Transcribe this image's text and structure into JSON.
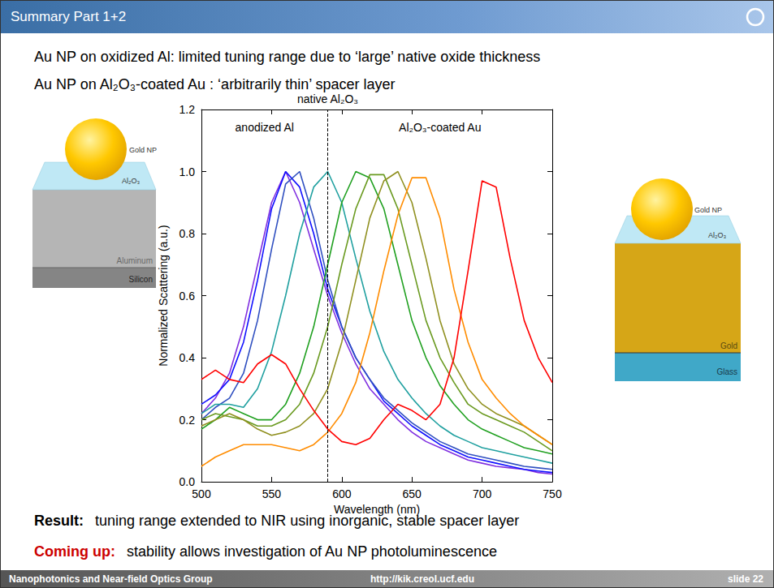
{
  "slide": {
    "title": "Summary Part 1+2",
    "lines": [
      "Au NP on oxidized Al: limited tuning range due to ‘large’ native oxide thickness",
      "Au NP on Al₂O₃-coated Au : ‘arbitrarily thin’ spacer layer"
    ],
    "result": {
      "label": "Result:",
      "text": "tuning range extended to NIR using inorganic, stable spacer layer"
    },
    "coming_up": {
      "label": "Coming up:",
      "text": "stability allows investigation of Au NP photoluminescence"
    },
    "left_diagram": {
      "labels": [
        "Gold NP",
        "Al₂O₃",
        "Aluminum",
        "Silicon"
      ]
    },
    "right_diagram": {
      "labels": [
        "Gold NP",
        "Al₂O₃",
        "Gold",
        "Glass"
      ]
    },
    "footer": {
      "group": "Nanophotonics and Near-field Optics Group",
      "url": "http://kik.creol.ucf.edu",
      "page": "slide 22"
    }
  },
  "chart_data": {
    "type": "line",
    "x_label": "Wavelength (nm)",
    "y_label": "Normalized Scattering (a.u.)",
    "xlim": [
      500,
      750
    ],
    "xticks": [
      500,
      550,
      600,
      650,
      700,
      750
    ],
    "ylim": [
      0,
      1.2
    ],
    "yticks": [
      {
        "value": 0,
        "label": "0.0"
      },
      0.2,
      0.4,
      0.6,
      0.8,
      {
        "value": 1,
        "label": "1.0"
      },
      1.2
    ],
    "grid": false,
    "reference_line": {
      "x": 590,
      "label": "native Al₂O₃",
      "line_style": "dashed"
    },
    "annotations": [
      "anodized Al",
      "Al₂O₃-coated Au"
    ],
    "x": [
      500,
      510,
      520,
      530,
      540,
      550,
      560,
      570,
      580,
      590,
      600,
      610,
      620,
      630,
      640,
      650,
      660,
      670,
      680,
      690,
      700,
      710,
      720,
      730,
      740,
      750
    ],
    "series": [
      {
        "color": "#8030e0",
        "values": [
          0.22,
          0.27,
          0.35,
          0.5,
          0.7,
          0.9,
          1.0,
          0.9,
          0.75,
          0.6,
          0.48,
          0.38,
          0.3,
          0.25,
          0.2,
          0.16,
          0.13,
          0.11,
          0.09,
          0.07,
          0.06,
          0.05,
          0.045,
          0.04,
          0.03,
          0.025
        ]
      },
      {
        "color": "#1010ff",
        "values": [
          0.25,
          0.28,
          0.33,
          0.45,
          0.65,
          0.88,
          1.0,
          0.95,
          0.8,
          0.62,
          0.5,
          0.4,
          0.33,
          0.26,
          0.22,
          0.18,
          0.15,
          0.12,
          0.1,
          0.08,
          0.07,
          0.06,
          0.05,
          0.04,
          0.035,
          0.03
        ]
      },
      {
        "color": "#3050c0",
        "values": [
          0.2,
          0.24,
          0.27,
          0.35,
          0.52,
          0.75,
          0.96,
          1.0,
          0.85,
          0.65,
          0.5,
          0.4,
          0.33,
          0.27,
          0.23,
          0.19,
          0.16,
          0.13,
          0.11,
          0.09,
          0.08,
          0.07,
          0.06,
          0.05,
          0.045,
          0.04
        ]
      },
      {
        "color": "#20a0a0",
        "values": [
          0.22,
          0.25,
          0.25,
          0.24,
          0.3,
          0.42,
          0.6,
          0.8,
          0.95,
          1.0,
          0.9,
          0.72,
          0.55,
          0.42,
          0.33,
          0.27,
          0.22,
          0.18,
          0.15,
          0.13,
          0.11,
          0.1,
          0.09,
          0.08,
          0.07,
          0.06
        ]
      },
      {
        "color": "#20a020",
        "values": [
          0.17,
          0.2,
          0.24,
          0.22,
          0.2,
          0.2,
          0.25,
          0.35,
          0.5,
          0.7,
          0.9,
          1.0,
          0.98,
          0.88,
          0.7,
          0.52,
          0.4,
          0.31,
          0.25,
          0.2,
          0.17,
          0.15,
          0.13,
          0.11,
          0.1,
          0.09
        ]
      },
      {
        "color": "#6a9a20",
        "values": [
          0.2,
          0.22,
          0.21,
          0.2,
          0.18,
          0.18,
          0.2,
          0.25,
          0.35,
          0.5,
          0.7,
          0.88,
          0.99,
          0.99,
          0.88,
          0.7,
          0.52,
          0.4,
          0.32,
          0.25,
          0.22,
          0.2,
          0.18,
          0.16,
          0.13,
          0.1
        ]
      },
      {
        "color": "#909020",
        "values": [
          0.18,
          0.2,
          0.22,
          0.2,
          0.17,
          0.15,
          0.16,
          0.18,
          0.22,
          0.3,
          0.45,
          0.65,
          0.85,
          0.97,
          1.0,
          0.9,
          0.72,
          0.52,
          0.38,
          0.3,
          0.25,
          0.22,
          0.2,
          0.18,
          0.15,
          0.12
        ]
      },
      {
        "color": "#ff8c00",
        "values": [
          0.05,
          0.08,
          0.1,
          0.12,
          0.12,
          0.12,
          0.11,
          0.1,
          0.12,
          0.16,
          0.22,
          0.32,
          0.48,
          0.68,
          0.86,
          0.98,
          0.98,
          0.85,
          0.62,
          0.45,
          0.33,
          0.27,
          0.22,
          0.18,
          0.15,
          0.12
        ]
      },
      {
        "color": "#ff0000",
        "values": [
          0.33,
          0.36,
          0.33,
          0.32,
          0.38,
          0.41,
          0.38,
          0.3,
          0.23,
          0.17,
          0.13,
          0.12,
          0.14,
          0.2,
          0.25,
          0.23,
          0.2,
          0.25,
          0.4,
          0.68,
          0.97,
          0.95,
          0.72,
          0.52,
          0.4,
          0.32
        ]
      }
    ]
  }
}
